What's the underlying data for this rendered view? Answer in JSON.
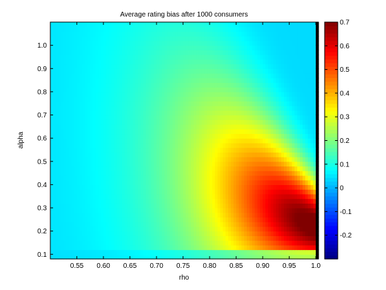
{
  "chart_data": {
    "type": "heatmap",
    "title": "Average rating bias after 1000 consumers",
    "xlabel": "rho",
    "ylabel": "alpha",
    "xlim": [
      0.5,
      1.005
    ],
    "ylim": [
      0.08,
      1.1
    ],
    "x_ticks": [
      "0.55",
      "0.60",
      "0.65",
      "0.70",
      "0.75",
      "0.80",
      "0.85",
      "0.90",
      "0.95",
      "1.0"
    ],
    "y_ticks": [
      "0.1",
      "0.2",
      "0.3",
      "0.4",
      "0.5",
      "0.6",
      "0.7",
      "0.8",
      "0.9",
      "1.0"
    ],
    "colorbar": {
      "range": [
        -0.3,
        0.7
      ],
      "ticks": [
        "-0.2",
        "-0.1",
        "0",
        "0.1",
        "0.2",
        "0.3",
        "0.4",
        "0.5",
        "0.6",
        "0.7"
      ],
      "colormap": "jet"
    },
    "grid": false,
    "description_of_values": [
      {
        "rho": 0.5,
        "alpha": 0.1,
        "value": 0.05
      },
      {
        "rho": 0.5,
        "alpha": 0.5,
        "value": 0.15
      },
      {
        "rho": 0.5,
        "alpha": 1.0,
        "value": 0.04
      },
      {
        "rho": 0.75,
        "alpha": 0.5,
        "value": 0.24
      },
      {
        "rho": 0.85,
        "alpha": 0.4,
        "value": 0.45
      },
      {
        "rho": 0.95,
        "alpha": 0.3,
        "value": 0.6
      },
      {
        "rho": 1.0,
        "alpha": 0.25,
        "value": 0.7
      },
      {
        "rho": 1.0,
        "alpha": 0.6,
        "value": 0.3
      },
      {
        "rho": 1.0,
        "alpha": 1.0,
        "value": 0.13
      },
      {
        "rho": 0.9,
        "alpha": 0.1,
        "value": 0.1
      }
    ]
  }
}
